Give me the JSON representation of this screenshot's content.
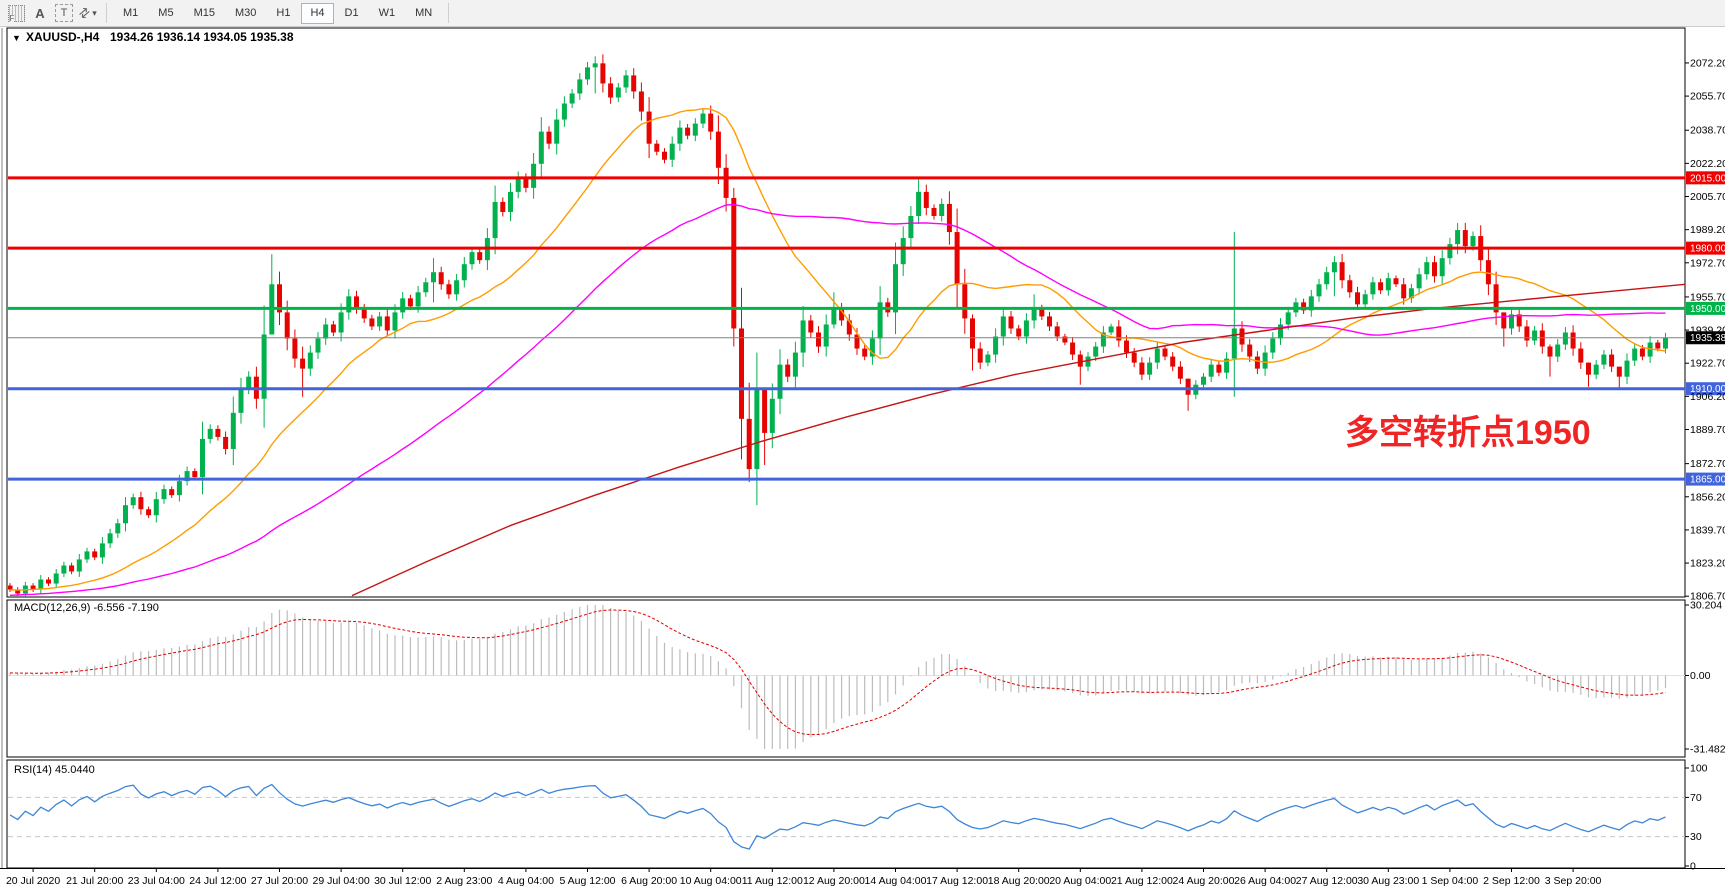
{
  "toolbar": {
    "icons": [
      {
        "name": "drag-grip-icon",
        "glyph": "F"
      },
      {
        "name": "letter-a-icon",
        "glyph": "A"
      },
      {
        "name": "text-tool-icon",
        "glyph": "T"
      },
      {
        "name": "crosshair-arrows-icon",
        "glyph": "⇄"
      },
      {
        "name": "dropdown-caret-icon",
        "glyph": "▾"
      }
    ],
    "timeframes": [
      "M1",
      "M5",
      "M15",
      "M30",
      "H1",
      "H4",
      "D1",
      "W1",
      "MN"
    ],
    "active_timeframe": "H4"
  },
  "chart": {
    "collapse_icon": "▼",
    "symbol": "XAUUSD-,H4",
    "ohlc": "1934.26 1936.14 1934.05 1935.38",
    "annotation": {
      "text": "多空转折点1950",
      "color": "#f02424"
    },
    "price_axis": {
      "tick_labels": [
        "2072.20",
        "2055.70",
        "2038.70",
        "2022.20",
        "2005.70",
        "1989.20",
        "1972.70",
        "1955.70",
        "1939.20",
        "1922.70",
        "1906.20",
        "1889.70",
        "1872.70",
        "1856.20",
        "1839.70",
        "1823.20",
        "1806.70"
      ],
      "max_price": 2089.6,
      "min_price": 1806.3
    },
    "hlines": [
      {
        "price": 2015.0,
        "label": "2015.00",
        "color": "#f00000",
        "width": 3
      },
      {
        "price": 1980.0,
        "label": "1980.00",
        "color": "#f00000",
        "width": 3
      },
      {
        "price": 1950.0,
        "label": "1950.00",
        "color": "#00b44a",
        "width": 3
      },
      {
        "price": 1910.0,
        "label": "1910.00",
        "color": "#4164dd",
        "width": 3
      },
      {
        "price": 1865.0,
        "label": "1865.00",
        "color": "#4164dd",
        "width": 3
      }
    ],
    "current_price": {
      "price": 1935.38,
      "label": "1935.38",
      "line_color": "#808080",
      "badge_bg": "#000000"
    },
    "colors": {
      "bull": "#00b14e",
      "bear": "#e60400",
      "ma_fast": "#ff9c00",
      "ma_mid": "#ff00ff",
      "ma_slow": "#c41414",
      "macd_hist": "#bcbcbc",
      "macd_signal": "#e00000",
      "rsi_line": "#3d86d8",
      "level_dashed": "#c8c8c8",
      "frame": "#000000"
    }
  },
  "chart_data": {
    "type": "candlestick",
    "symbol": "XAUUSD",
    "timeframe": "H4",
    "prehistory_closes": [
      1795,
      1797,
      1796,
      1798,
      1800,
      1799,
      1801,
      1800,
      1802,
      1801,
      1803,
      1802,
      1804,
      1803,
      1805,
      1804,
      1806,
      1805,
      1807,
      1806,
      1804,
      1806,
      1805,
      1807,
      1806,
      1808,
      1807,
      1805,
      1807,
      1808,
      1806,
      1808,
      1807,
      1809,
      1808,
      1806,
      1808,
      1809,
      1807,
      1809,
      1808,
      1810,
      1809,
      1807,
      1809,
      1810,
      1808,
      1810,
      1809,
      1811,
      1810,
      1808,
      1810,
      1811,
      1809,
      1811,
      1810,
      1812,
      1811,
      1812
    ],
    "first_open": 1812,
    "closes": [
      1810,
      1808,
      1812,
      1810,
      1815,
      1813,
      1818,
      1822,
      1819,
      1825,
      1829,
      1826,
      1833,
      1838,
      1843,
      1852,
      1856,
      1850,
      1847,
      1855,
      1860,
      1857,
      1864,
      1869,
      1866,
      1885,
      1890,
      1886,
      1880,
      1898,
      1910,
      1916,
      1905,
      1937,
      1962,
      1948,
      1935,
      1925,
      1920,
      1928,
      1935,
      1942,
      1938,
      1948,
      1956,
      1950,
      1945,
      1941,
      1946,
      1939,
      1948,
      1955,
      1951,
      1958,
      1963,
      1968,
      1962,
      1957,
      1964,
      1972,
      1978,
      1974,
      1985,
      2003,
      1998,
      2008,
      2015,
      2010,
      2022,
      2038,
      2032,
      2044,
      2052,
      2057,
      2064,
      2070,
      2072,
      2062,
      2055,
      2060,
      2066,
      2058,
      2048,
      2032,
      2028,
      2024,
      2032,
      2040,
      2036,
      2042,
      2047,
      2038,
      2020,
      2005,
      1940,
      1895,
      1870,
      1910,
      1888,
      1905,
      1922,
      1916,
      1928,
      1944,
      1938,
      1931,
      1942,
      1950,
      1944,
      1937,
      1930,
      1926,
      1935,
      1953,
      1948,
      1972,
      1985,
      1996,
      2008,
      2000,
      1996,
      2002,
      1988,
      1962,
      1945,
      1930,
      1923,
      1927,
      1936,
      1946,
      1940,
      1936,
      1944,
      1950,
      1946,
      1941,
      1936,
      1933,
      1927,
      1921,
      1926,
      1931,
      1938,
      1941,
      1934,
      1928,
      1923,
      1917,
      1923,
      1930,
      1926,
      1921,
      1915,
      1907,
      1912,
      1916,
      1922,
      1918,
      1925,
      1940,
      1932,
      1926,
      1920,
      1928,
      1935,
      1942,
      1948,
      1953,
      1949,
      1956,
      1962,
      1968,
      1973,
      1964,
      1958,
      1952,
      1957,
      1963,
      1959,
      1965,
      1962,
      1955,
      1960,
      1967,
      1973,
      1966,
      1975,
      1982,
      1989,
      1981,
      1986,
      1974,
      1962,
      1948,
      1940,
      1947,
      1941,
      1934,
      1939,
      1931,
      1926,
      1932,
      1938,
      1930,
      1923,
      1917,
      1922,
      1927,
      1921,
      1916,
      1924,
      1930,
      1926,
      1933,
      1930,
      1935.4
    ],
    "wick_overrides": {
      "34": [
        1977,
        1939
      ],
      "38": [
        1931,
        1906
      ],
      "49": [
        1950,
        1936
      ],
      "55": [
        1975,
        1953
      ],
      "76": [
        2075.5,
        2057
      ],
      "94": [
        2010,
        1931
      ],
      "96": [
        1913,
        1863.5
      ],
      "98": [
        1909,
        1872
      ],
      "107": [
        1958,
        1940
      ],
      "118": [
        2014.5,
        1992
      ],
      "125": [
        1947,
        1919
      ],
      "133": [
        1957,
        1940
      ],
      "139": [
        1929,
        1912
      ],
      "153": [
        1915,
        1899
      ],
      "159": [
        1988,
        1906
      ],
      "172": [
        1976,
        1956
      ],
      "188": [
        1992.5,
        1977
      ],
      "194": [
        1948,
        1931
      ],
      "200": [
        1932,
        1916
      ],
      "205": [
        1923,
        1911
      ],
      "209": [
        1920,
        1910
      ]
    },
    "moving_averages": {
      "fast_period": 20,
      "mid_period": 55,
      "slow_points": [
        [
          0.205,
          1807
        ],
        [
          0.25,
          1824
        ],
        [
          0.3,
          1842
        ],
        [
          0.35,
          1857
        ],
        [
          0.4,
          1871
        ],
        [
          0.45,
          1884
        ],
        [
          0.5,
          1896
        ],
        [
          0.55,
          1907
        ],
        [
          0.6,
          1917
        ],
        [
          0.65,
          1925
        ],
        [
          0.7,
          1933
        ],
        [
          0.75,
          1939
        ],
        [
          0.8,
          1945
        ],
        [
          0.85,
          1950
        ],
        [
          0.9,
          1954
        ],
        [
          0.95,
          1958
        ],
        [
          1.0,
          1962
        ]
      ]
    },
    "macd": {
      "label": "MACD(12,26,9) -6.556 -7.190",
      "fast": 12,
      "slow": 26,
      "signal": 9,
      "scale_labels": [
        "30.204",
        "0.00",
        "-31.482"
      ],
      "scale_max": 30.204,
      "scale_min": -31.482
    },
    "rsi": {
      "label": "RSI(14) 45.0440",
      "period": 14,
      "levels": [
        100,
        70,
        30,
        0
      ],
      "level_labels": [
        "100",
        "70",
        "30",
        "0"
      ],
      "dashed_levels": [
        70,
        30
      ]
    },
    "time_axis": {
      "labels": [
        "20 Jul 2020",
        "21 Jul 20:00",
        "23 Jul 04:00",
        "24 Jul 12:00",
        "27 Jul 20:00",
        "29 Jul 04:00",
        "30 Jul 12:00",
        "2 Aug 23:00",
        "4 Aug 04:00",
        "5 Aug 12:00",
        "6 Aug 20:00",
        "10 Aug 04:00",
        "11 Aug 12:00",
        "12 Aug 20:00",
        "14 Aug 04:00",
        "17 Aug 12:00",
        "18 Aug 20:00",
        "20 Aug 04:00",
        "21 Aug 12:00",
        "24 Aug 20:00",
        "26 Aug 04:00",
        "27 Aug 12:00",
        "30 Aug 23:00",
        "1 Sep 04:00",
        "2 Sep 12:00",
        "3 Sep 20:00"
      ],
      "first_candle_index": 3,
      "candles_per_label": 8
    }
  }
}
